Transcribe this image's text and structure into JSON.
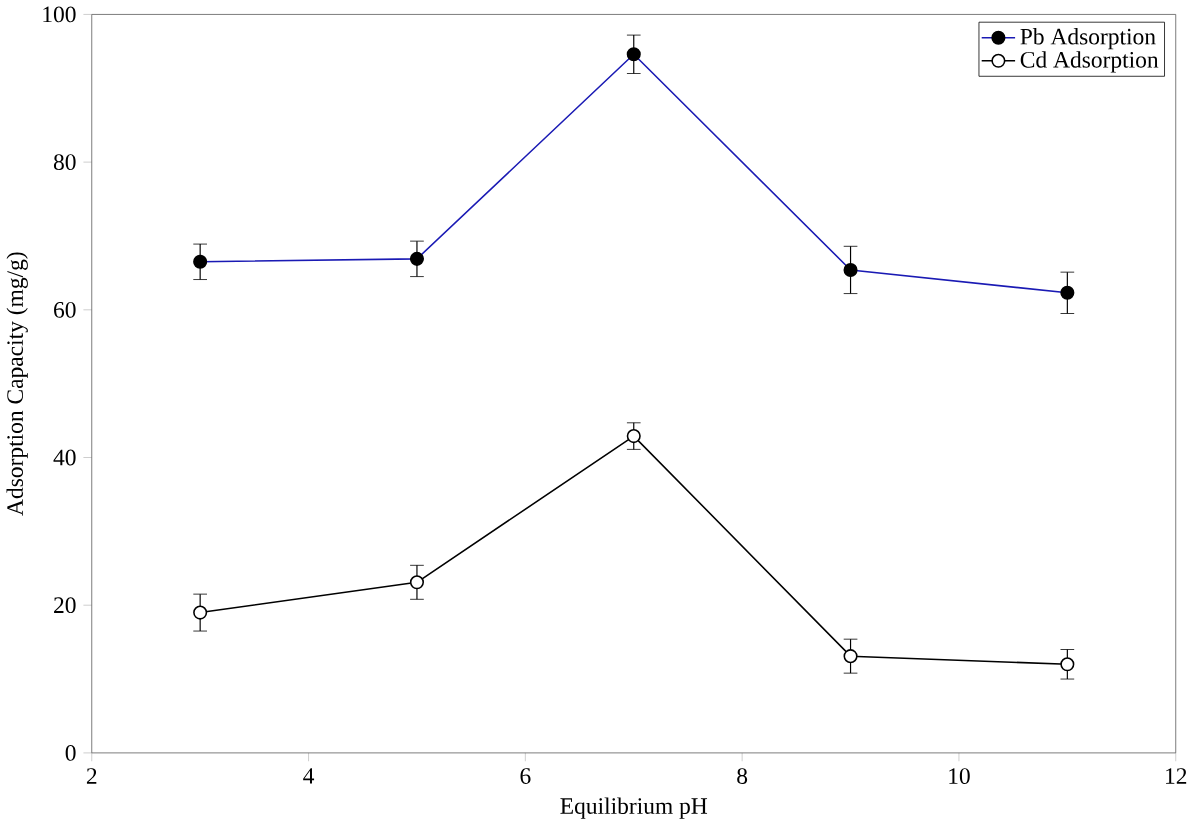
{
  "chart_data": {
    "type": "line",
    "xlabel": "Equilibrium pH",
    "ylabel": "Adsorption Capacity (mg/g)",
    "x": [
      3,
      5,
      7,
      9,
      11
    ],
    "series": [
      {
        "name": "Pb Adsorption",
        "color": "#1a1ab4",
        "marker": "circle",
        "values": [
          66.5,
          66.9,
          94.6,
          65.4,
          62.3
        ],
        "errors": [
          2.4,
          2.4,
          2.6,
          3.2,
          2.8
        ]
      },
      {
        "name": "Cd Adsorption",
        "color": "#000000",
        "marker": "open circle",
        "values": [
          19.0,
          23.1,
          42.9,
          13.1,
          12.0
        ],
        "errors": [
          2.5,
          2.3,
          1.8,
          2.3,
          2.0
        ]
      }
    ],
    "xlim": [
      2,
      12
    ],
    "ylim": [
      0,
      100
    ],
    "xticks": [
      2,
      4,
      6,
      8,
      10,
      12
    ],
    "yticks": [
      0,
      20,
      40,
      60,
      80,
      100
    ],
    "grid": false,
    "legend": "top right"
  }
}
